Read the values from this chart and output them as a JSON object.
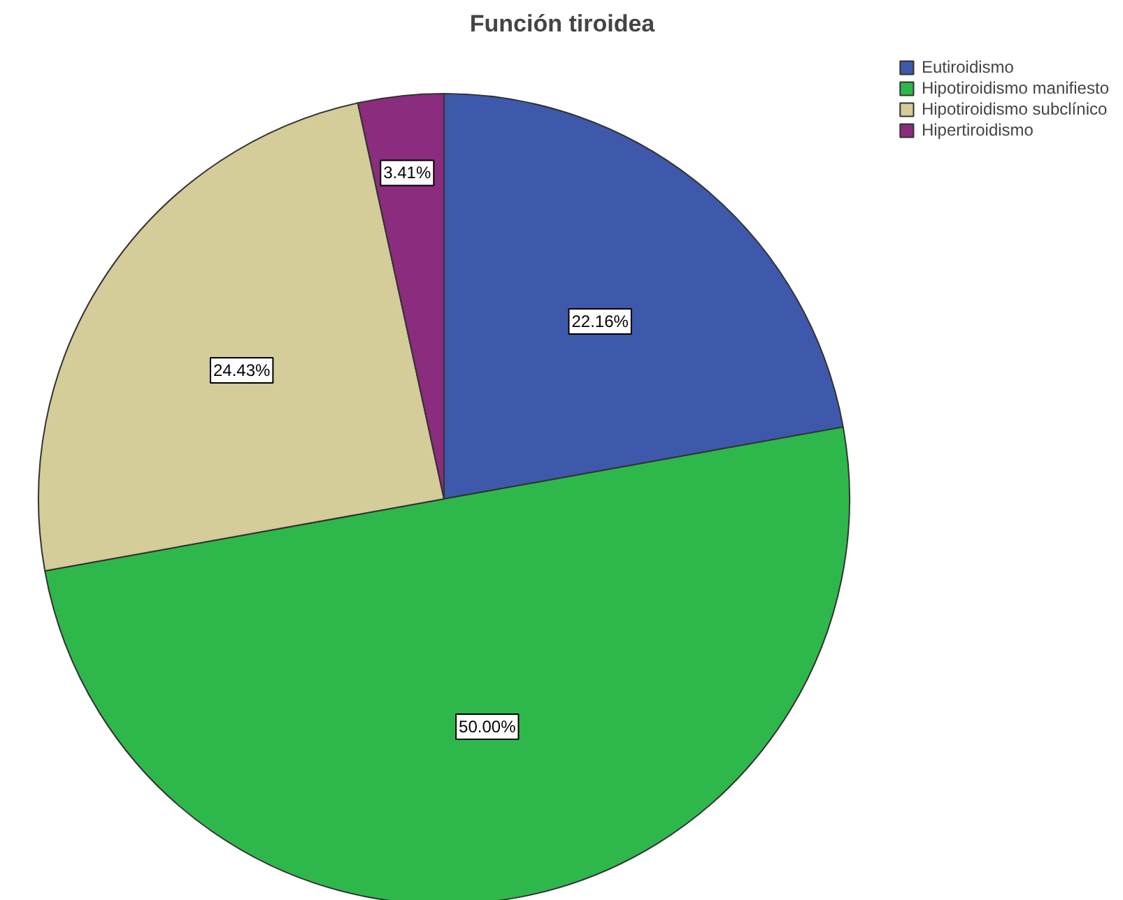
{
  "chart_data": {
    "type": "pie",
    "title": "Función tiroidea",
    "categories": [
      "Eutiroidismo",
      "Hipotiroidismo manifiesto",
      "Hipotiroidismo subclínico",
      "Hipertiroidismo"
    ],
    "values": [
      22.16,
      50.0,
      24.43,
      3.41
    ],
    "colors": [
      "#3e58ac",
      "#2eb84b",
      "#d4cc99",
      "#8b2c7e"
    ],
    "value_labels": [
      "22.16%",
      "50.00%",
      "24.43%",
      "3.41%"
    ],
    "legend": "top right"
  }
}
